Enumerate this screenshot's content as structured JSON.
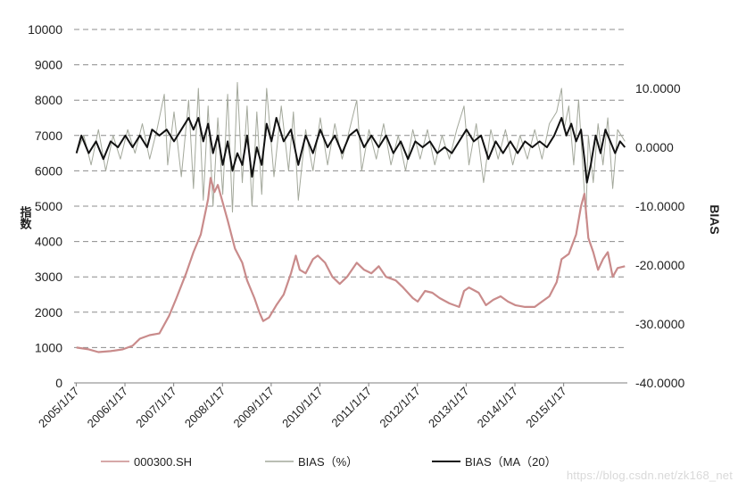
{
  "chart_data": {
    "type": "line",
    "left_axis": {
      "label": "指数",
      "range": [
        0,
        10000
      ],
      "ticks": [
        "0",
        "1000",
        "2000",
        "3000",
        "4000",
        "5000",
        "6000",
        "7000",
        "8000",
        "9000",
        "10000"
      ]
    },
    "right_axis": {
      "label": "BIAS",
      "range": [
        -40,
        20
      ],
      "ticks": [
        "-40.0000",
        "-30.0000",
        "-20.0000",
        "-10.0000",
        "0.0000",
        "10.0000"
      ]
    },
    "x_ticks": [
      "2005/1/17",
      "2006/1/17",
      "2007/1/17",
      "2008/1/17",
      "2009/1/17",
      "2010/1/17",
      "2011/1/17",
      "2012/1/17",
      "2013/1/17",
      "2014/1/17",
      "2015/1/17"
    ],
    "x_range": [
      2005.0,
      2016.35
    ],
    "grid": "horizontal dashed",
    "legend_position": "bottom",
    "series": [
      {
        "name": "000300.SH",
        "axis": "left",
        "color": "#c98b8b",
        "points": [
          [
            2005.05,
            1000
          ],
          [
            2005.3,
            950
          ],
          [
            2005.5,
            870
          ],
          [
            2005.75,
            900
          ],
          [
            2006.0,
            950
          ],
          [
            2006.2,
            1050
          ],
          [
            2006.35,
            1250
          ],
          [
            2006.55,
            1350
          ],
          [
            2006.75,
            1400
          ],
          [
            2006.95,
            1900
          ],
          [
            2007.1,
            2400
          ],
          [
            2007.3,
            3100
          ],
          [
            2007.45,
            3700
          ],
          [
            2007.6,
            4200
          ],
          [
            2007.75,
            5200
          ],
          [
            2007.8,
            5800
          ],
          [
            2007.88,
            5400
          ],
          [
            2007.95,
            5600
          ],
          [
            2008.05,
            5100
          ],
          [
            2008.15,
            4600
          ],
          [
            2008.3,
            3800
          ],
          [
            2008.45,
            3400
          ],
          [
            2008.55,
            2900
          ],
          [
            2008.7,
            2400
          ],
          [
            2008.8,
            2000
          ],
          [
            2008.88,
            1750
          ],
          [
            2009.0,
            1850
          ],
          [
            2009.15,
            2200
          ],
          [
            2009.3,
            2500
          ],
          [
            2009.45,
            3100
          ],
          [
            2009.55,
            3600
          ],
          [
            2009.63,
            3200
          ],
          [
            2009.75,
            3100
          ],
          [
            2009.9,
            3500
          ],
          [
            2010.0,
            3600
          ],
          [
            2010.15,
            3400
          ],
          [
            2010.3,
            3000
          ],
          [
            2010.45,
            2800
          ],
          [
            2010.6,
            3000
          ],
          [
            2010.8,
            3400
          ],
          [
            2010.95,
            3200
          ],
          [
            2011.1,
            3100
          ],
          [
            2011.25,
            3300
          ],
          [
            2011.4,
            3000
          ],
          [
            2011.6,
            2900
          ],
          [
            2011.75,
            2700
          ],
          [
            2011.95,
            2400
          ],
          [
            2012.05,
            2300
          ],
          [
            2012.2,
            2600
          ],
          [
            2012.35,
            2550
          ],
          [
            2012.5,
            2400
          ],
          [
            2012.7,
            2250
          ],
          [
            2012.9,
            2150
          ],
          [
            2013.0,
            2600
          ],
          [
            2013.1,
            2700
          ],
          [
            2013.3,
            2550
          ],
          [
            2013.45,
            2200
          ],
          [
            2013.6,
            2350
          ],
          [
            2013.75,
            2450
          ],
          [
            2013.9,
            2300
          ],
          [
            2014.05,
            2200
          ],
          [
            2014.25,
            2150
          ],
          [
            2014.45,
            2150
          ],
          [
            2014.6,
            2300
          ],
          [
            2014.75,
            2450
          ],
          [
            2014.9,
            2850
          ],
          [
            2015.0,
            3500
          ],
          [
            2015.15,
            3650
          ],
          [
            2015.3,
            4200
          ],
          [
            2015.4,
            5000
          ],
          [
            2015.47,
            5350
          ],
          [
            2015.55,
            4100
          ],
          [
            2015.65,
            3700
          ],
          [
            2015.75,
            3200
          ],
          [
            2015.85,
            3500
          ],
          [
            2015.95,
            3700
          ],
          [
            2016.05,
            3000
          ],
          [
            2016.15,
            3250
          ],
          [
            2016.3,
            3300
          ]
        ]
      },
      {
        "name": "BIAS（%）",
        "axis": "right",
        "color": "#a3a89b",
        "points": [
          [
            2005.05,
            -1
          ],
          [
            2005.2,
            2
          ],
          [
            2005.35,
            -3
          ],
          [
            2005.5,
            3
          ],
          [
            2005.65,
            -4
          ],
          [
            2005.8,
            2
          ],
          [
            2005.95,
            -2
          ],
          [
            2006.1,
            3
          ],
          [
            2006.25,
            -1
          ],
          [
            2006.4,
            4
          ],
          [
            2006.55,
            -2
          ],
          [
            2006.7,
            3
          ],
          [
            2006.85,
            9
          ],
          [
            2006.92,
            -3
          ],
          [
            2007.05,
            6
          ],
          [
            2007.2,
            -5
          ],
          [
            2007.35,
            8
          ],
          [
            2007.45,
            -7
          ],
          [
            2007.55,
            10
          ],
          [
            2007.65,
            -9
          ],
          [
            2007.75,
            7
          ],
          [
            2007.85,
            -10
          ],
          [
            2007.95,
            5
          ],
          [
            2008.05,
            -8
          ],
          [
            2008.15,
            9
          ],
          [
            2008.25,
            -11
          ],
          [
            2008.35,
            11
          ],
          [
            2008.45,
            -6
          ],
          [
            2008.55,
            7
          ],
          [
            2008.65,
            -10
          ],
          [
            2008.75,
            6
          ],
          [
            2008.85,
            -8
          ],
          [
            2008.95,
            10
          ],
          [
            2009.1,
            -5
          ],
          [
            2009.25,
            7
          ],
          [
            2009.4,
            -4
          ],
          [
            2009.5,
            6
          ],
          [
            2009.6,
            -9
          ],
          [
            2009.75,
            3
          ],
          [
            2009.9,
            -4
          ],
          [
            2010.05,
            5
          ],
          [
            2010.2,
            -3
          ],
          [
            2010.35,
            4
          ],
          [
            2010.5,
            -2
          ],
          [
            2010.65,
            3
          ],
          [
            2010.8,
            8
          ],
          [
            2010.9,
            -4
          ],
          [
            2011.05,
            3
          ],
          [
            2011.2,
            -2
          ],
          [
            2011.35,
            4
          ],
          [
            2011.5,
            -3
          ],
          [
            2011.65,
            2
          ],
          [
            2011.8,
            -4
          ],
          [
            2011.95,
            3
          ],
          [
            2012.1,
            -2
          ],
          [
            2012.25,
            3
          ],
          [
            2012.4,
            -3
          ],
          [
            2012.55,
            2
          ],
          [
            2012.7,
            -2
          ],
          [
            2012.85,
            3
          ],
          [
            2013.0,
            7
          ],
          [
            2013.1,
            -3
          ],
          [
            2013.25,
            4
          ],
          [
            2013.4,
            -6
          ],
          [
            2013.55,
            3
          ],
          [
            2013.7,
            -2
          ],
          [
            2013.85,
            3
          ],
          [
            2014.0,
            -3
          ],
          [
            2014.15,
            2
          ],
          [
            2014.3,
            -2
          ],
          [
            2014.45,
            3
          ],
          [
            2014.6,
            -2
          ],
          [
            2014.75,
            4
          ],
          [
            2014.9,
            6
          ],
          [
            2015.0,
            10
          ],
          [
            2015.05,
            3
          ],
          [
            2015.15,
            7
          ],
          [
            2015.25,
            -3
          ],
          [
            2015.35,
            8
          ],
          [
            2015.45,
            -5
          ],
          [
            2015.5,
            -12
          ],
          [
            2015.55,
            2
          ],
          [
            2015.65,
            -6
          ],
          [
            2015.75,
            4
          ],
          [
            2015.85,
            -3
          ],
          [
            2015.95,
            5
          ],
          [
            2016.05,
            -7
          ],
          [
            2016.15,
            3
          ],
          [
            2016.3,
            1
          ]
        ]
      },
      {
        "name": "BIAS（MA（20）",
        "axis": "right",
        "color": "#111111",
        "points": [
          [
            2005.05,
            -1
          ],
          [
            2005.15,
            2
          ],
          [
            2005.3,
            -1
          ],
          [
            2005.45,
            1
          ],
          [
            2005.6,
            -2
          ],
          [
            2005.75,
            1
          ],
          [
            2005.9,
            0
          ],
          [
            2006.05,
            2
          ],
          [
            2006.2,
            0
          ],
          [
            2006.35,
            2
          ],
          [
            2006.5,
            0
          ],
          [
            2006.6,
            3
          ],
          [
            2006.75,
            2
          ],
          [
            2006.9,
            3
          ],
          [
            2007.05,
            1
          ],
          [
            2007.2,
            3
          ],
          [
            2007.35,
            5
          ],
          [
            2007.45,
            3
          ],
          [
            2007.55,
            5
          ],
          [
            2007.65,
            1
          ],
          [
            2007.75,
            4
          ],
          [
            2007.85,
            -1
          ],
          [
            2007.95,
            2
          ],
          [
            2008.05,
            -3
          ],
          [
            2008.15,
            1
          ],
          [
            2008.25,
            -4
          ],
          [
            2008.35,
            -1
          ],
          [
            2008.45,
            -3
          ],
          [
            2008.55,
            2
          ],
          [
            2008.65,
            -5
          ],
          [
            2008.75,
            0
          ],
          [
            2008.85,
            -3
          ],
          [
            2008.95,
            4
          ],
          [
            2009.05,
            1
          ],
          [
            2009.15,
            5
          ],
          [
            2009.3,
            1
          ],
          [
            2009.45,
            3
          ],
          [
            2009.6,
            -3
          ],
          [
            2009.75,
            2
          ],
          [
            2009.9,
            -1
          ],
          [
            2010.05,
            3
          ],
          [
            2010.2,
            0
          ],
          [
            2010.35,
            2
          ],
          [
            2010.5,
            -1
          ],
          [
            2010.65,
            2
          ],
          [
            2010.8,
            3
          ],
          [
            2010.95,
            0
          ],
          [
            2011.1,
            2
          ],
          [
            2011.25,
            0
          ],
          [
            2011.4,
            2
          ],
          [
            2011.55,
            -1
          ],
          [
            2011.7,
            1
          ],
          [
            2011.85,
            -2
          ],
          [
            2012.0,
            1
          ],
          [
            2012.15,
            0
          ],
          [
            2012.3,
            1
          ],
          [
            2012.45,
            -1
          ],
          [
            2012.6,
            0
          ],
          [
            2012.75,
            -1
          ],
          [
            2012.9,
            1
          ],
          [
            2013.05,
            3
          ],
          [
            2013.2,
            1
          ],
          [
            2013.35,
            2
          ],
          [
            2013.5,
            -2
          ],
          [
            2013.65,
            1
          ],
          [
            2013.8,
            -1
          ],
          [
            2013.95,
            1
          ],
          [
            2014.1,
            -1
          ],
          [
            2014.25,
            1
          ],
          [
            2014.4,
            0
          ],
          [
            2014.55,
            1
          ],
          [
            2014.7,
            0
          ],
          [
            2014.85,
            2
          ],
          [
            2015.0,
            5
          ],
          [
            2015.1,
            2
          ],
          [
            2015.2,
            4
          ],
          [
            2015.3,
            1
          ],
          [
            2015.4,
            3
          ],
          [
            2015.47,
            -2
          ],
          [
            2015.52,
            -6
          ],
          [
            2015.6,
            -3
          ],
          [
            2015.7,
            2
          ],
          [
            2015.8,
            -1
          ],
          [
            2015.9,
            3
          ],
          [
            2016.0,
            1
          ],
          [
            2016.1,
            -1
          ],
          [
            2016.2,
            1
          ],
          [
            2016.3,
            0
          ]
        ]
      }
    ]
  },
  "watermark": "https://blog.csdn.net/zk168_net"
}
